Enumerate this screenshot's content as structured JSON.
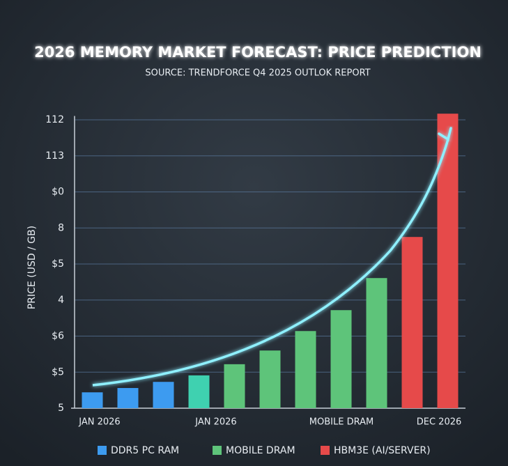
{
  "chart_data": {
    "type": "bar",
    "title": "2026 MEMORY MARKET FORECAST: PRICE PREDICTION",
    "subtitle": "SOURCE: TRENDFORCE Q4 2025 OUTLOK REPORT",
    "y_label": "PRICE (USD / GB)",
    "categories": [
      null,
      null,
      null,
      null,
      null,
      null,
      null,
      null,
      null,
      null,
      null
    ],
    "values": [
      0.44,
      0.56,
      0.73,
      0.91,
      1.22,
      1.6,
      2.14,
      2.72,
      3.61,
      4.75,
      8.17
    ],
    "colors": [
      "#3d9bf0",
      "#3d9bf0",
      "#3d9bf0",
      "#3fd1b0",
      "#5ec47a",
      "#5ec47a",
      "#5ec47a",
      "#5ec47a",
      "#5ec47a",
      "#e64a4a",
      "#e64a4a"
    ],
    "x_labels": [
      "JAN 2026",
      "JAN 2026",
      "MOBILE DRAM",
      "DEC 2026"
    ],
    "legend": [
      {
        "name": "DDR5 PC RAM",
        "color": "#3d9bf0"
      },
      {
        "name": "MOBILE DRAM",
        "color": "#5ec47a"
      },
      {
        "name": "HBM3E (AI/SERVER)",
        "color": "#e64a4a"
      }
    ],
    "ylim": [
      0,
      8.3
    ],
    "yticks": [
      {
        "value": 0,
        "label": "5"
      },
      {
        "value": 1,
        "label": "$5"
      },
      {
        "value": 2,
        "label": "$6"
      },
      {
        "value": 3,
        "label": "4"
      },
      {
        "value": 4,
        "label": "$5"
      },
      {
        "value": 5,
        "label": "8"
      },
      {
        "value": 6,
        "label": "$0"
      },
      {
        "value": 7,
        "label": "113"
      },
      {
        "value": 8,
        "label": "112"
      }
    ],
    "grid": true
  }
}
